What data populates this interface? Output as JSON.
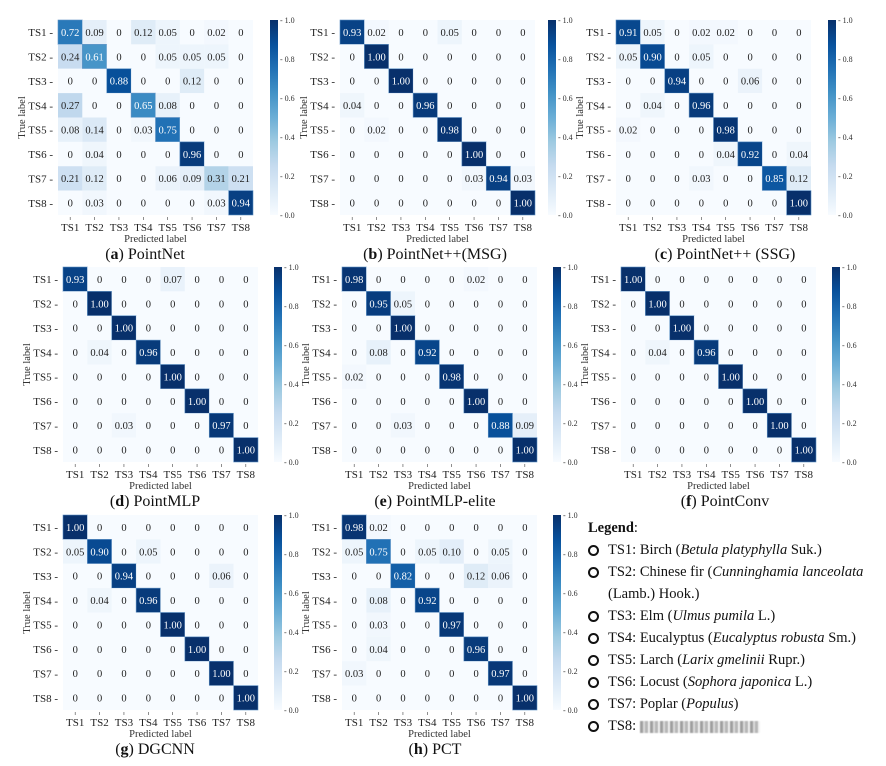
{
  "chart_data": [
    {
      "type": "heatmap",
      "panel": "a",
      "title": "PointNet",
      "xlabel": "Predicted label",
      "ylabel": "True label",
      "colorbar": {
        "range": [
          0,
          1
        ],
        "ticks": [
          "0.0",
          "0.2",
          "0.4",
          "0.6",
          "0.8",
          "1.0"
        ]
      },
      "categories": [
        "TS1",
        "TS2",
        "TS3",
        "TS4",
        "TS5",
        "TS6",
        "TS7",
        "TS8"
      ],
      "values": [
        [
          0.72,
          0.09,
          0,
          0.12,
          0.05,
          0,
          0.02,
          0
        ],
        [
          0.24,
          0.61,
          0,
          0,
          0.05,
          0.05,
          0.05,
          0
        ],
        [
          0,
          0,
          0.88,
          0,
          0,
          0.12,
          0,
          0
        ],
        [
          0.27,
          0,
          0,
          0.65,
          0.08,
          0,
          0,
          0
        ],
        [
          0.08,
          0.14,
          0,
          0.03,
          0.75,
          0,
          0,
          0
        ],
        [
          0,
          0.04,
          0,
          0,
          0,
          0.96,
          0,
          0
        ],
        [
          0.21,
          0.12,
          0,
          0,
          0.06,
          0.09,
          0.31,
          0.21
        ],
        [
          0,
          0.03,
          0,
          0,
          0,
          0,
          0.03,
          0.94
        ]
      ]
    },
    {
      "type": "heatmap",
      "panel": "b",
      "title": "PointNet++(MSG)",
      "xlabel": "Predicted label",
      "ylabel": "True label",
      "colorbar": {
        "range": [
          0,
          1
        ],
        "ticks": [
          "0.0",
          "0.2",
          "0.4",
          "0.6",
          "0.8",
          "1.0"
        ]
      },
      "categories": [
        "TS1",
        "TS2",
        "TS3",
        "TS4",
        "TS5",
        "TS6",
        "TS7",
        "TS8"
      ],
      "values": [
        [
          0.93,
          0.02,
          0,
          0,
          0.05,
          0,
          0,
          0
        ],
        [
          0,
          1.0,
          0,
          0,
          0,
          0,
          0,
          0
        ],
        [
          0,
          0,
          1.0,
          0,
          0,
          0,
          0,
          0
        ],
        [
          0.04,
          0,
          0,
          0.96,
          0,
          0,
          0,
          0
        ],
        [
          0,
          0.02,
          0,
          0,
          0.98,
          0,
          0,
          0
        ],
        [
          0,
          0,
          0,
          0,
          0,
          1.0,
          0,
          0
        ],
        [
          0,
          0,
          0,
          0,
          0,
          0.03,
          0.94,
          0.03
        ],
        [
          0,
          0,
          0,
          0,
          0,
          0,
          0,
          1.0
        ]
      ]
    },
    {
      "type": "heatmap",
      "panel": "c",
      "title": "PointNet++ (SSG)",
      "xlabel": "Predicted label",
      "ylabel": "True label",
      "colorbar": {
        "range": [
          0,
          1
        ],
        "ticks": [
          "0.0",
          "0.2",
          "0.4",
          "0.6",
          "0.8",
          "1.0"
        ]
      },
      "categories": [
        "TS1",
        "TS2",
        "TS3",
        "TS4",
        "TS5",
        "TS6",
        "TS7",
        "TS8"
      ],
      "values": [
        [
          0.91,
          0.05,
          0,
          0.02,
          0.02,
          0,
          0,
          0
        ],
        [
          0.05,
          0.9,
          0,
          0.05,
          0,
          0,
          0,
          0
        ],
        [
          0,
          0,
          0.94,
          0,
          0,
          0.06,
          0,
          0
        ],
        [
          0,
          0.04,
          0,
          0.96,
          0,
          0,
          0,
          0
        ],
        [
          0.02,
          0,
          0,
          0,
          0.98,
          0,
          0,
          0
        ],
        [
          0,
          0,
          0,
          0,
          0.04,
          0.92,
          0,
          0.04
        ],
        [
          0,
          0,
          0,
          0.03,
          0,
          0,
          0.85,
          0.12
        ],
        [
          0,
          0,
          0,
          0,
          0,
          0,
          0,
          1.0
        ]
      ]
    },
    {
      "type": "heatmap",
      "panel": "d",
      "title": "PointMLP",
      "xlabel": "Predicted label",
      "ylabel": "True label",
      "colorbar": {
        "range": [
          0,
          1
        ],
        "ticks": [
          "0.0",
          "0.2",
          "0.4",
          "0.6",
          "0.8",
          "1.0"
        ]
      },
      "categories": [
        "TS1",
        "TS2",
        "TS3",
        "TS4",
        "TS5",
        "TS6",
        "TS7",
        "TS8"
      ],
      "values": [
        [
          0.93,
          0,
          0,
          0,
          0.07,
          0,
          0,
          0
        ],
        [
          0,
          1.0,
          0,
          0,
          0,
          0,
          0,
          0
        ],
        [
          0,
          0,
          1.0,
          0,
          0,
          0,
          0,
          0
        ],
        [
          0,
          0.04,
          0,
          0.96,
          0,
          0,
          0,
          0
        ],
        [
          0,
          0,
          0,
          0,
          1.0,
          0,
          0,
          0
        ],
        [
          0,
          0,
          0,
          0,
          0,
          1.0,
          0,
          0
        ],
        [
          0,
          0,
          0.03,
          0,
          0,
          0,
          0.97,
          0
        ],
        [
          0,
          0,
          0,
          0,
          0,
          0,
          0,
          1.0
        ]
      ]
    },
    {
      "type": "heatmap",
      "panel": "e",
      "title": "PointMLP-elite",
      "xlabel": "Predicted label",
      "ylabel": "True label",
      "colorbar": {
        "range": [
          0,
          1
        ],
        "ticks": [
          "0.0",
          "0.2",
          "0.4",
          "0.6",
          "0.8",
          "1.0"
        ]
      },
      "categories": [
        "TS1",
        "TS2",
        "TS3",
        "TS4",
        "TS5",
        "TS6",
        "TS7",
        "TS8"
      ],
      "values": [
        [
          0.98,
          0,
          0,
          0,
          0,
          0.02,
          0,
          0
        ],
        [
          0,
          0.95,
          0.05,
          0,
          0,
          0,
          0,
          0
        ],
        [
          0,
          0,
          1.0,
          0,
          0,
          0,
          0,
          0
        ],
        [
          0,
          0.08,
          0,
          0.92,
          0,
          0,
          0,
          0
        ],
        [
          0.02,
          0,
          0,
          0,
          0.98,
          0,
          0,
          0
        ],
        [
          0,
          0,
          0,
          0,
          0,
          1.0,
          0,
          0
        ],
        [
          0,
          0,
          0.03,
          0,
          0,
          0,
          0.88,
          0.09
        ],
        [
          0,
          0,
          0,
          0,
          0,
          0,
          0,
          1.0
        ]
      ]
    },
    {
      "type": "heatmap",
      "panel": "f",
      "title": "PointConv",
      "xlabel": "Predicted label",
      "ylabel": "True label",
      "colorbar": {
        "range": [
          0,
          1
        ],
        "ticks": [
          "0.0",
          "0.2",
          "0.4",
          "0.6",
          "0.8",
          "1.0"
        ]
      },
      "categories": [
        "TS1",
        "TS2",
        "TS3",
        "TS4",
        "TS5",
        "TS6",
        "TS7",
        "TS8"
      ],
      "values": [
        [
          1.0,
          0,
          0,
          0,
          0,
          0,
          0,
          0
        ],
        [
          0,
          1.0,
          0,
          0,
          0,
          0,
          0,
          0
        ],
        [
          0,
          0,
          1.0,
          0,
          0,
          0,
          0,
          0
        ],
        [
          0,
          0.04,
          0,
          0.96,
          0,
          0,
          0,
          0
        ],
        [
          0,
          0,
          0,
          0,
          1.0,
          0,
          0,
          0
        ],
        [
          0,
          0,
          0,
          0,
          0,
          1.0,
          0,
          0
        ],
        [
          0,
          0,
          0,
          0,
          0,
          0,
          1.0,
          0
        ],
        [
          0,
          0,
          0,
          0,
          0,
          0,
          0,
          1.0
        ]
      ]
    },
    {
      "type": "heatmap",
      "panel": "g",
      "title": "DGCNN",
      "xlabel": "Predicted label",
      "ylabel": "True label",
      "colorbar": {
        "range": [
          0,
          1
        ],
        "ticks": [
          "0.0",
          "0.2",
          "0.4",
          "0.6",
          "0.8",
          "1.0"
        ]
      },
      "categories": [
        "TS1",
        "TS2",
        "TS3",
        "TS4",
        "TS5",
        "TS6",
        "TS7",
        "TS8"
      ],
      "values": [
        [
          1.0,
          0,
          0,
          0,
          0,
          0,
          0,
          0
        ],
        [
          0.05,
          0.9,
          0,
          0.05,
          0,
          0,
          0,
          0
        ],
        [
          0,
          0,
          0.94,
          0,
          0,
          0,
          0.06,
          0
        ],
        [
          0,
          0.04,
          0,
          0.96,
          0,
          0,
          0,
          0
        ],
        [
          0,
          0,
          0,
          0,
          1.0,
          0,
          0,
          0
        ],
        [
          0,
          0,
          0,
          0,
          0,
          1.0,
          0,
          0
        ],
        [
          0,
          0,
          0,
          0,
          0,
          0,
          1.0,
          0
        ],
        [
          0,
          0,
          0,
          0,
          0,
          0,
          0,
          1.0
        ]
      ]
    },
    {
      "type": "heatmap",
      "panel": "h",
      "title": "PCT",
      "xlabel": "Predicted label",
      "ylabel": "True label",
      "colorbar": {
        "range": [
          0,
          1
        ],
        "ticks": [
          "0.0",
          "0.2",
          "0.4",
          "0.6",
          "0.8",
          "1.0"
        ]
      },
      "categories": [
        "TS1",
        "TS2",
        "TS3",
        "TS4",
        "TS5",
        "TS6",
        "TS7",
        "TS8"
      ],
      "values": [
        [
          0.98,
          0.02,
          0,
          0,
          0,
          0,
          0,
          0
        ],
        [
          0.05,
          0.75,
          0,
          0.05,
          0.1,
          0,
          0.05,
          0
        ],
        [
          0,
          0,
          0.82,
          0,
          0,
          0.12,
          0.06,
          0
        ],
        [
          0,
          0.08,
          0,
          0.92,
          0,
          0,
          0,
          0
        ],
        [
          0,
          0.03,
          0,
          0,
          0.97,
          0,
          0,
          0
        ],
        [
          0,
          0.04,
          0,
          0,
          0,
          0.96,
          0,
          0
        ],
        [
          0.03,
          0,
          0,
          0,
          0,
          0,
          0.97,
          0
        ],
        [
          0,
          0,
          0,
          0,
          0,
          0,
          0,
          1.0
        ]
      ]
    }
  ],
  "legend": {
    "title": "Legend",
    "items": [
      {
        "code": "TS1: Birch (",
        "latin": "Betula platyphylla",
        "auth": " Suk.)"
      },
      {
        "code": "TS2: Chinese fir (",
        "latin": "Cunninghamia lanceolata",
        "auth": " (Lamb.) Hook.)"
      },
      {
        "code": "TS3: Elm (",
        "latin": "Ulmus pumila",
        "auth": " L.)"
      },
      {
        "code": "TS4: Eucalyptus (",
        "latin": "Eucalyptus robusta",
        "auth": " Sm.)"
      },
      {
        "code": "TS5: Larch (",
        "latin": "Larix gmelinii",
        "auth": " Rupr.)"
      },
      {
        "code": "TS6: Locust (",
        "latin": "Sophora japonica",
        "auth": " L.)"
      },
      {
        "code": "TS7: Poplar (",
        "latin": "Populus",
        "auth": ")"
      },
      {
        "code": "TS8:",
        "latin": "",
        "auth": ""
      }
    ]
  },
  "colors": {
    "low": "#f7fbff",
    "high": "#08306b"
  }
}
